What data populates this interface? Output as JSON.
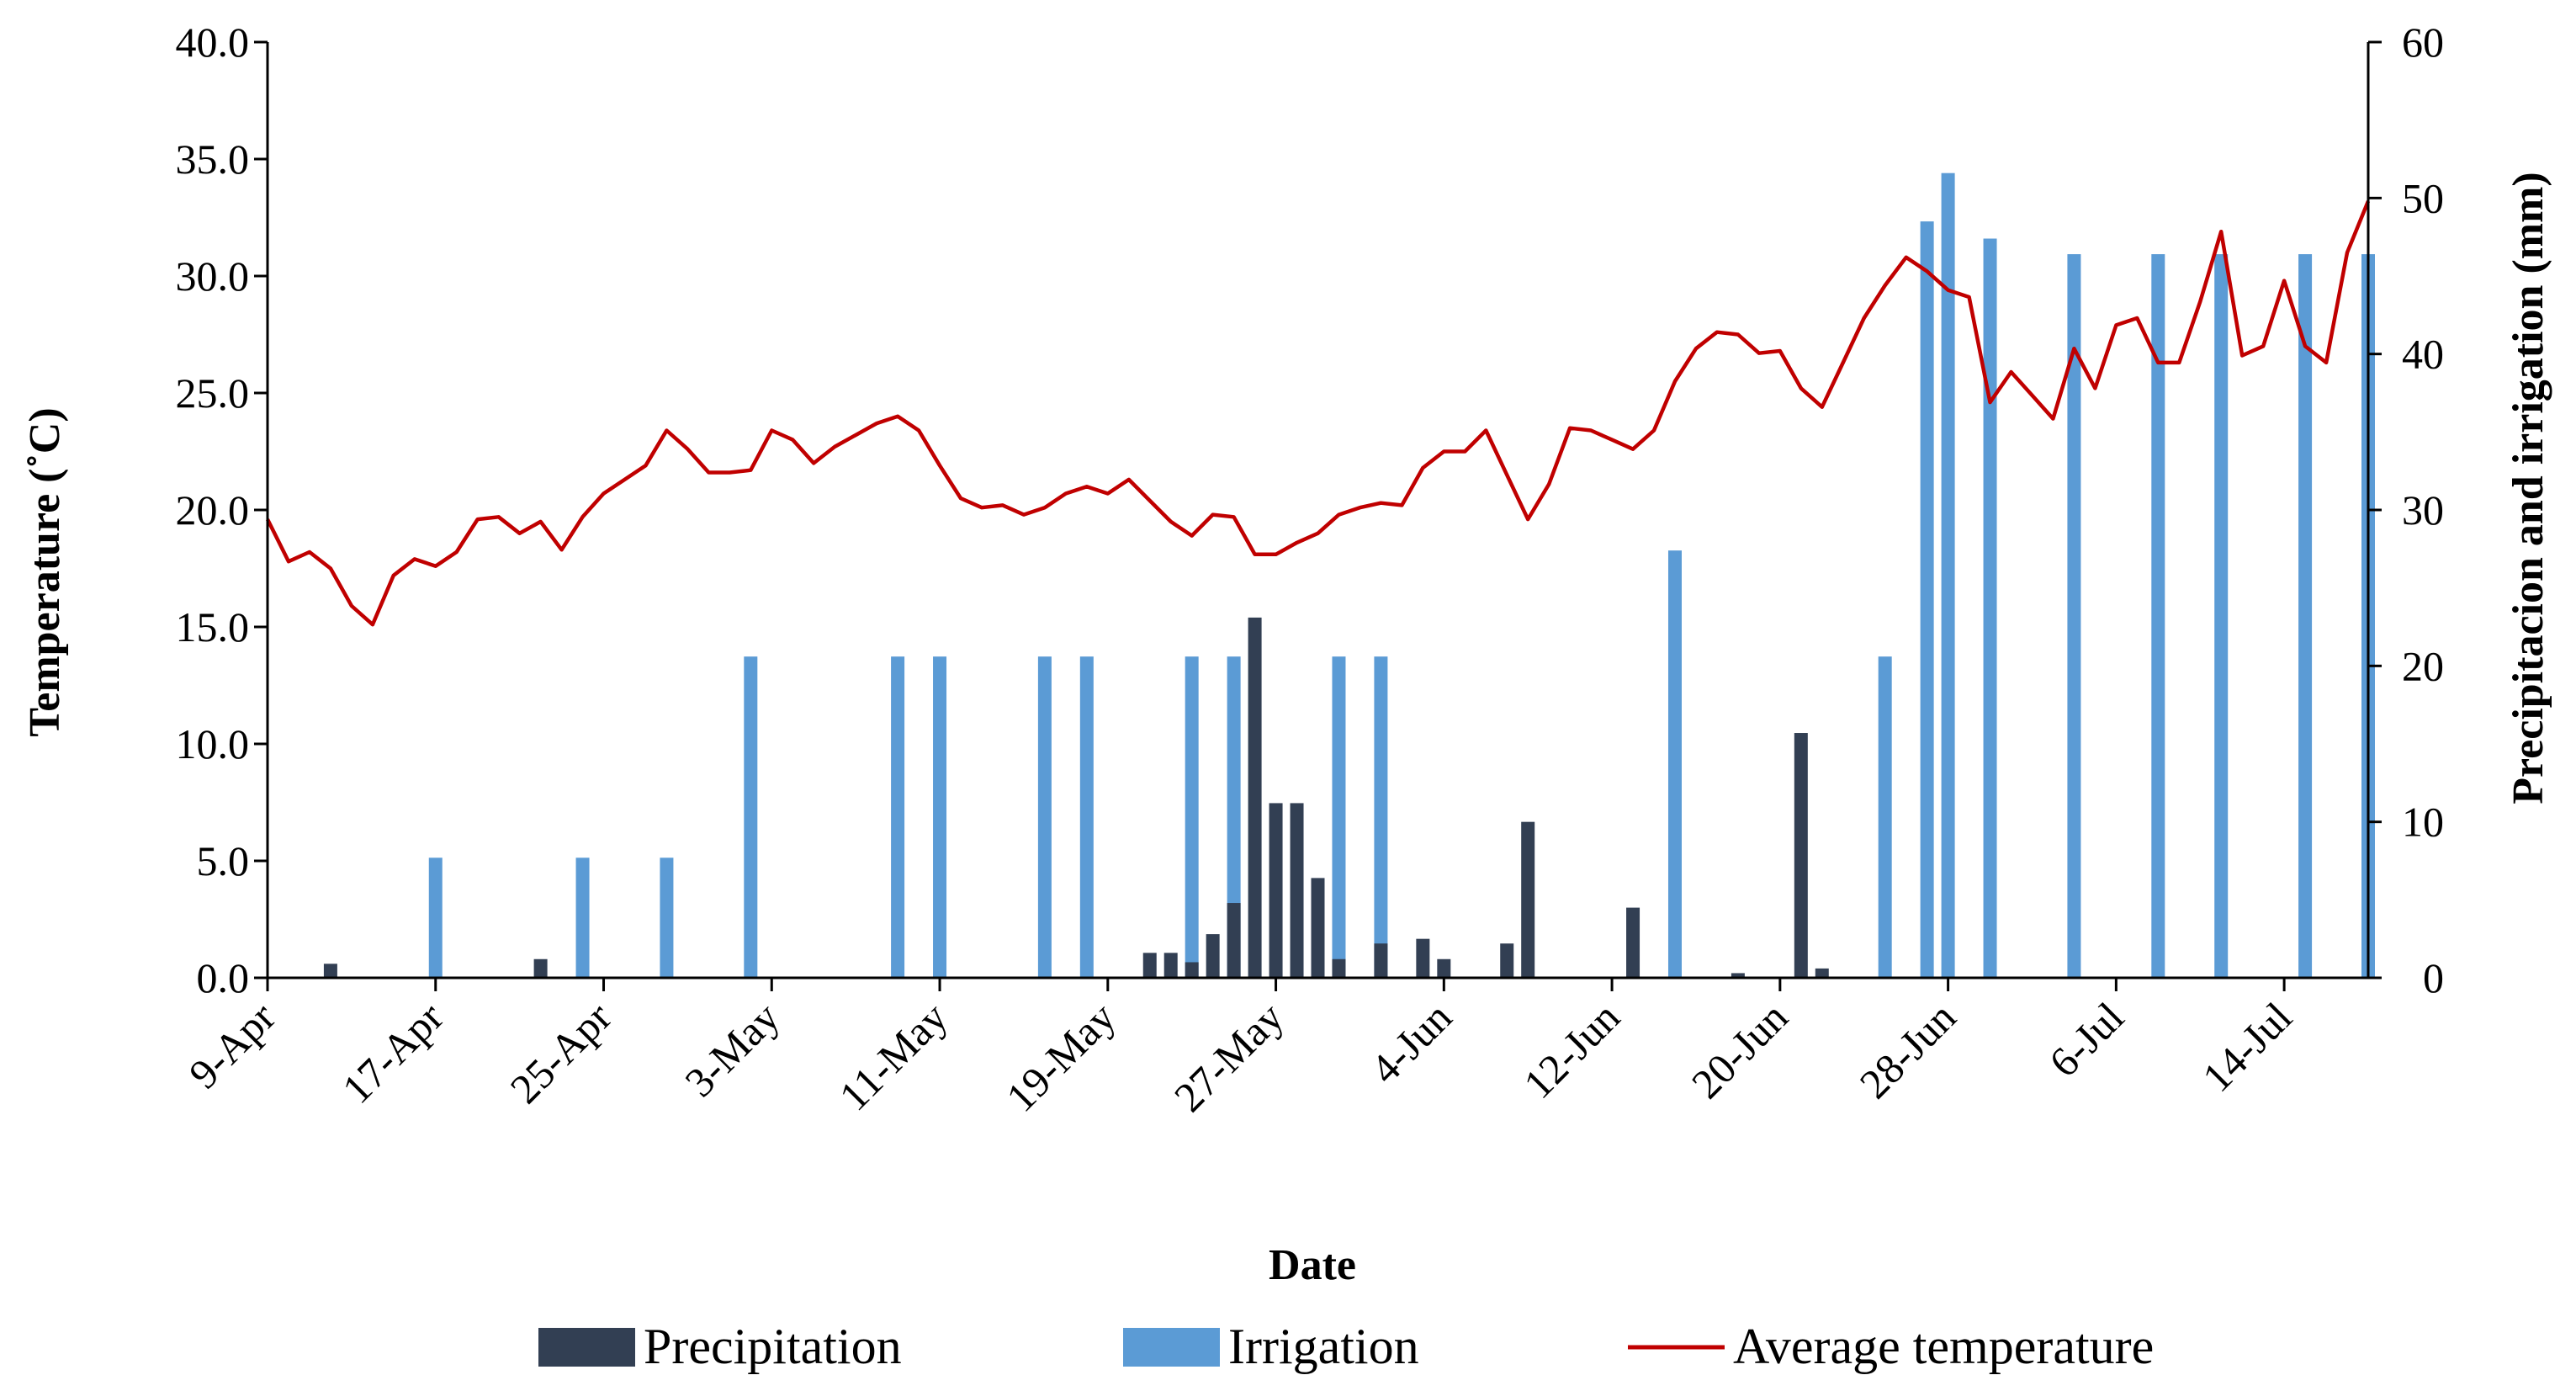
{
  "chart_data": {
    "type": "bar+line",
    "title": "",
    "xlabel": "Date",
    "ylabel_left": "Temperature (˚C)",
    "ylabel_right": "Precipitacion and irrigation (mm)",
    "ylim_left": [
      0,
      40
    ],
    "ylim_right": [
      0,
      60
    ],
    "left_ticks": [
      "0.0",
      "5.0",
      "10.0",
      "15.0",
      "20.0",
      "25.0",
      "30.0",
      "35.0",
      "40.0"
    ],
    "right_ticks": [
      "0",
      "10",
      "20",
      "30",
      "40",
      "50",
      "60"
    ],
    "x_tick_labels": [
      "9-Apr",
      "17-Apr",
      "25-Apr",
      "3-May",
      "11-May",
      "19-May",
      "27-May",
      "4-Jun",
      "12-Jun",
      "20-Jun",
      "28-Jun",
      "6-Jul",
      "14-Jul"
    ],
    "num_days": 101,
    "series": [
      {
        "name": "Precipitation",
        "type": "bar",
        "axis": "right",
        "color": "#323f53",
        "day_offsets": [
          3,
          13,
          42,
          43,
          44,
          45,
          46,
          47,
          48,
          49,
          50,
          51,
          53,
          55,
          56,
          59,
          60,
          65,
          70,
          73,
          74
        ],
        "values": [
          0.9,
          1.2,
          1.6,
          1.6,
          1.0,
          2.8,
          4.8,
          23.1,
          11.2,
          11.2,
          6.4,
          1.2,
          2.2,
          2.5,
          1.2,
          2.2,
          10.0,
          4.5,
          0.3,
          15.7,
          0.6
        ]
      },
      {
        "name": "Irrigation",
        "type": "bar",
        "axis": "right",
        "color": "#5b9bd5",
        "day_offsets": [
          8,
          15,
          19,
          23,
          30,
          32,
          37,
          39,
          44,
          46,
          51,
          53,
          67,
          77,
          79,
          80,
          82,
          86,
          90,
          93,
          97,
          100
        ],
        "values": [
          7.7,
          7.7,
          7.7,
          20.6,
          20.6,
          20.6,
          20.6,
          20.6,
          20.6,
          20.6,
          20.6,
          20.6,
          27.4,
          20.6,
          48.5,
          51.6,
          47.4,
          46.4,
          46.4,
          46.4,
          46.4,
          46.4
        ]
      },
      {
        "name": "Average temperature",
        "type": "line",
        "axis": "left",
        "color": "#c00000",
        "day_offsets": [
          0,
          1,
          2,
          3,
          4,
          5,
          6,
          7,
          8,
          9,
          10,
          11,
          12,
          13,
          14,
          15,
          16,
          17,
          18,
          19,
          20,
          21,
          22,
          23,
          24,
          25,
          26,
          27,
          28,
          29,
          30,
          31,
          32,
          33,
          34,
          35,
          36,
          37,
          38,
          39,
          40,
          41,
          42,
          43,
          44,
          45,
          46,
          47,
          48,
          49,
          50,
          51,
          52,
          53,
          54,
          55,
          56,
          57,
          58,
          59,
          60,
          61,
          62,
          63,
          64,
          65,
          66,
          67,
          68,
          69,
          70,
          71,
          72,
          73,
          74,
          75,
          76,
          77,
          78,
          79,
          80,
          81,
          82,
          83,
          84,
          85,
          86,
          87,
          88,
          89,
          90,
          91,
          92,
          93,
          94,
          95,
          96,
          97,
          98,
          99,
          100
        ],
        "values": [
          19.6,
          17.8,
          18.2,
          17.5,
          15.9,
          15.1,
          17.2,
          17.9,
          17.6,
          18.2,
          19.6,
          19.7,
          19.0,
          19.5,
          18.3,
          19.7,
          20.7,
          21.3,
          21.9,
          23.4,
          22.6,
          21.6,
          21.6,
          21.7,
          23.4,
          23.0,
          22.0,
          22.7,
          23.2,
          23.7,
          24.0,
          23.4,
          21.9,
          20.5,
          20.1,
          20.2,
          19.8,
          20.1,
          20.7,
          21.0,
          20.7,
          21.3,
          20.4,
          19.5,
          18.9,
          19.8,
          19.7,
          18.1,
          18.1,
          18.6,
          19.0,
          19.8,
          20.1,
          20.3,
          20.2,
          21.8,
          22.5,
          22.5,
          23.4,
          21.5,
          19.6,
          21.1,
          23.5,
          23.4,
          23.0,
          22.6,
          23.4,
          25.5,
          26.9,
          27.6,
          27.5,
          26.7,
          26.8,
          25.2,
          24.4,
          26.3,
          28.2,
          29.6,
          30.8,
          30.2,
          29.4,
          29.1,
          24.6,
          25.9,
          24.9,
          23.9,
          26.9,
          25.2,
          27.9,
          28.2,
          26.3,
          26.3,
          28.9,
          31.9,
          26.6,
          27.0,
          29.8,
          27.0,
          26.3,
          31.0,
          33.2
        ]
      }
    ],
    "legend": {
      "position": "bottom",
      "entries": [
        "Precipitation",
        "Irrigation",
        "Average temperature"
      ]
    }
  }
}
